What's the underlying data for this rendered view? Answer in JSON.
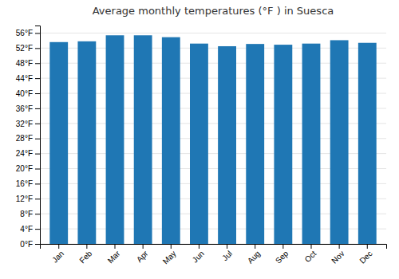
{
  "chart_data": {
    "type": "bar",
    "title": "Average monthly temperatures (°F ) in Suesca",
    "categories": [
      "Jan",
      "Feb",
      "Mar",
      "Apr",
      "May",
      "Jun",
      "Jul",
      "Aug",
      "Sep",
      "Oct",
      "Nov",
      "Dec"
    ],
    "values": [
      53.6,
      53.8,
      55.4,
      55.4,
      54.9,
      53.2,
      52.5,
      53.1,
      52.9,
      53.2,
      54.1,
      53.4
    ],
    "ylim": [
      0,
      58
    ],
    "yticks": [
      {
        "value": 0,
        "label": "0°F"
      },
      {
        "value": 4,
        "label": "4°F"
      },
      {
        "value": 8,
        "label": "8°F"
      },
      {
        "value": 12,
        "label": "12°F"
      },
      {
        "value": 16,
        "label": "16°F"
      },
      {
        "value": 20,
        "label": "20°F"
      },
      {
        "value": 24,
        "label": "24°F"
      },
      {
        "value": 28,
        "label": "28°F"
      },
      {
        "value": 32,
        "label": "32°F"
      },
      {
        "value": 36,
        "label": "36°F"
      },
      {
        "value": 40,
        "label": "40°F"
      },
      {
        "value": 44,
        "label": "44°F"
      },
      {
        "value": 48,
        "label": "48°F"
      },
      {
        "value": 52,
        "label": "52°F"
      },
      {
        "value": 56,
        "label": "56°F"
      }
    ],
    "grid": true
  }
}
